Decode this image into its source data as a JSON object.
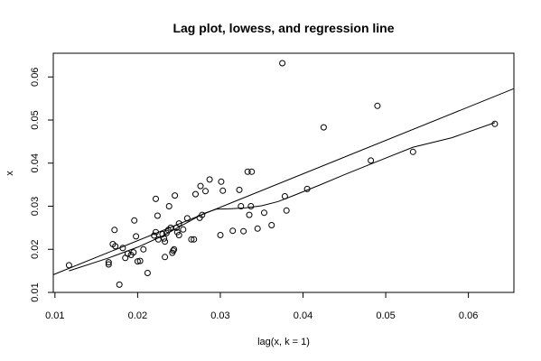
{
  "chart_data": {
    "type": "scatter",
    "title": "Lag plot, lowess, and regression line",
    "xlabel": "lag(x, k = 1)",
    "ylabel": "x",
    "xlim": [
      0.0098,
      0.0655
    ],
    "ylim": [
      0.01,
      0.0655
    ],
    "xticks": [
      0.01,
      0.02,
      0.03,
      0.04,
      0.05,
      0.06
    ],
    "yticks": [
      0.01,
      0.02,
      0.03,
      0.04,
      0.05,
      0.06
    ],
    "xtick_labels": [
      "0.01",
      "0.02",
      "0.03",
      "0.04",
      "0.05",
      "0.06"
    ],
    "ytick_labels": [
      "0.01",
      "0.02",
      "0.03",
      "0.04",
      "0.05",
      "0.06"
    ],
    "grid": false,
    "legend": "none",
    "series": [
      {
        "kind": "points",
        "marker": "open-circle",
        "points": [
          [
            0.0117,
            0.0163
          ],
          [
            0.0165,
            0.017
          ],
          [
            0.0165,
            0.0165
          ],
          [
            0.017,
            0.0212
          ],
          [
            0.0172,
            0.0245
          ],
          [
            0.0173,
            0.0207
          ],
          [
            0.0178,
            0.0118
          ],
          [
            0.0182,
            0.0203
          ],
          [
            0.0185,
            0.018
          ],
          [
            0.0188,
            0.019
          ],
          [
            0.0192,
            0.0187
          ],
          [
            0.0195,
            0.0193
          ],
          [
            0.0196,
            0.0267
          ],
          [
            0.0198,
            0.023
          ],
          [
            0.02,
            0.0172
          ],
          [
            0.0203,
            0.0173
          ],
          [
            0.0207,
            0.02
          ],
          [
            0.0212,
            0.0145
          ],
          [
            0.022,
            0.0232
          ],
          [
            0.0222,
            0.0317
          ],
          [
            0.0222,
            0.024
          ],
          [
            0.0224,
            0.0278
          ],
          [
            0.0225,
            0.0223
          ],
          [
            0.023,
            0.0235
          ],
          [
            0.0232,
            0.0225
          ],
          [
            0.0233,
            0.0218
          ],
          [
            0.0233,
            0.0182
          ],
          [
            0.0235,
            0.0238
          ],
          [
            0.0237,
            0.0245
          ],
          [
            0.0238,
            0.03
          ],
          [
            0.024,
            0.025
          ],
          [
            0.0242,
            0.0192
          ],
          [
            0.0243,
            0.0197
          ],
          [
            0.0244,
            0.02
          ],
          [
            0.0245,
            0.0325
          ],
          [
            0.0247,
            0.025
          ],
          [
            0.0248,
            0.024
          ],
          [
            0.025,
            0.0233
          ],
          [
            0.025,
            0.026
          ],
          [
            0.0255,
            0.0246
          ],
          [
            0.026,
            0.0272
          ],
          [
            0.0265,
            0.0223
          ],
          [
            0.0268,
            0.0223
          ],
          [
            0.027,
            0.0328
          ],
          [
            0.0275,
            0.0273
          ],
          [
            0.0276,
            0.0347
          ],
          [
            0.0278,
            0.028
          ],
          [
            0.0282,
            0.0335
          ],
          [
            0.0287,
            0.0362
          ],
          [
            0.03,
            0.0233
          ],
          [
            0.0301,
            0.0357
          ],
          [
            0.0303,
            0.0336
          ],
          [
            0.0315,
            0.0243
          ],
          [
            0.0323,
            0.0338
          ],
          [
            0.0325,
            0.03
          ],
          [
            0.0328,
            0.0242
          ],
          [
            0.0333,
            0.038
          ],
          [
            0.0335,
            0.028
          ],
          [
            0.0337,
            0.03
          ],
          [
            0.0338,
            0.038
          ],
          [
            0.0345,
            0.0248
          ],
          [
            0.0353,
            0.0285
          ],
          [
            0.0362,
            0.0256
          ],
          [
            0.0375,
            0.0632
          ],
          [
            0.0378,
            0.0323
          ],
          [
            0.038,
            0.029
          ],
          [
            0.0405,
            0.034
          ],
          [
            0.0425,
            0.0483
          ],
          [
            0.0482,
            0.0406
          ],
          [
            0.049,
            0.0533
          ],
          [
            0.0533,
            0.0426
          ],
          [
            0.0632,
            0.0491
          ]
        ]
      },
      {
        "kind": "regression-line",
        "line": [
          [
            0.0098,
            0.0141
          ],
          [
            0.0655,
            0.0573
          ]
        ]
      },
      {
        "kind": "lowess-curve",
        "line": [
          [
            0.0117,
            0.015
          ],
          [
            0.0165,
            0.018
          ],
          [
            0.02,
            0.0205
          ],
          [
            0.023,
            0.0231
          ],
          [
            0.026,
            0.0262
          ],
          [
            0.028,
            0.0283
          ],
          [
            0.0295,
            0.0293
          ],
          [
            0.031,
            0.0294
          ],
          [
            0.033,
            0.0296
          ],
          [
            0.035,
            0.0301
          ],
          [
            0.037,
            0.0311
          ],
          [
            0.039,
            0.0326
          ],
          [
            0.042,
            0.0349
          ],
          [
            0.045,
            0.0373
          ],
          [
            0.049,
            0.0404
          ],
          [
            0.0533,
            0.0437
          ],
          [
            0.058,
            0.0459
          ],
          [
            0.0632,
            0.0494
          ]
        ]
      }
    ]
  }
}
